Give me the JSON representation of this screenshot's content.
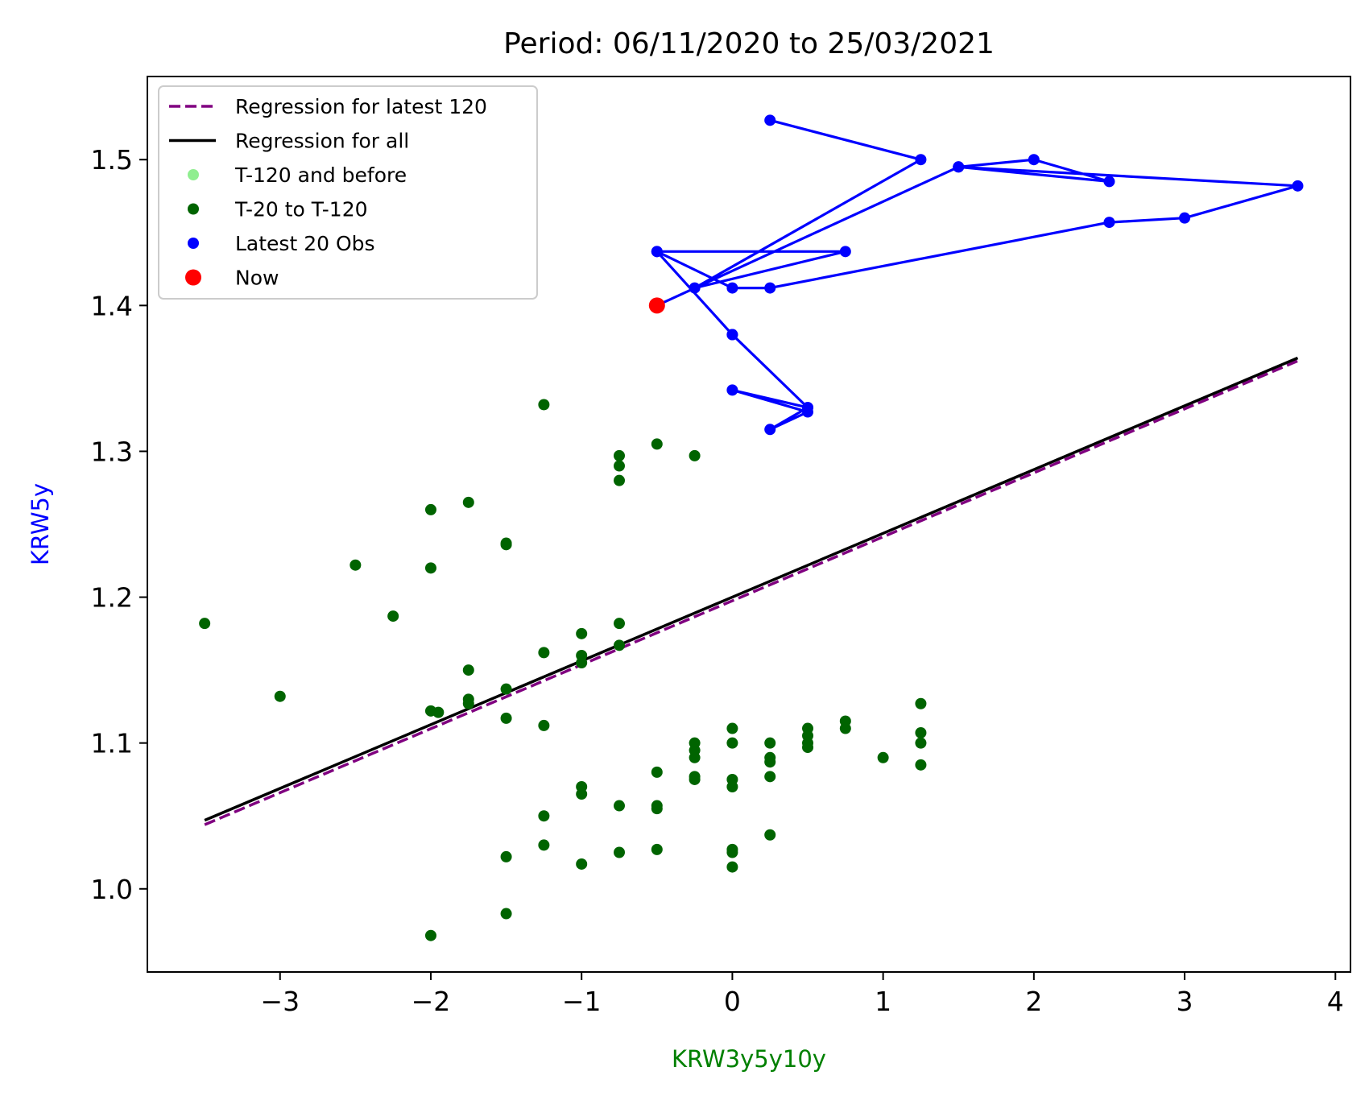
{
  "chart_data": {
    "type": "scatter",
    "title": "Period: 06/11/2020 to 25/03/2021",
    "xlabel": "KRW3y5y10y",
    "ylabel": "KRW5y",
    "xlim": [
      -3.88,
      4.1
    ],
    "ylim": [
      0.943,
      1.557
    ],
    "x_ticks": [
      {
        "value": -3,
        "label": "−3"
      },
      {
        "value": -2,
        "label": "−2"
      },
      {
        "value": -1,
        "label": "−1"
      },
      {
        "value": 0,
        "label": "0"
      },
      {
        "value": 1,
        "label": "1"
      },
      {
        "value": 2,
        "label": "2"
      },
      {
        "value": 3,
        "label": "3"
      },
      {
        "value": 4,
        "label": "4"
      }
    ],
    "y_ticks": [
      {
        "value": 1.0,
        "label": "1.0"
      },
      {
        "value": 1.1,
        "label": "1.1"
      },
      {
        "value": 1.2,
        "label": "1.2"
      },
      {
        "value": 1.3,
        "label": "1.3"
      },
      {
        "value": 1.4,
        "label": "1.4"
      },
      {
        "value": 1.5,
        "label": "1.5"
      }
    ],
    "grid": false,
    "legend_position": "top-left",
    "legend": [
      {
        "label": "Regression for latest 120",
        "kind": "dashed-line",
        "color": "#800080"
      },
      {
        "label": "Regression for all",
        "kind": "line",
        "color": "#000000"
      },
      {
        "label": "T-120 and before",
        "kind": "dot",
        "color": "#90ee90"
      },
      {
        "label": "T-20 to T-120",
        "kind": "dot",
        "color": "#006400"
      },
      {
        "label": "Latest 20 Obs",
        "kind": "dot",
        "color": "#0000ff"
      },
      {
        "label": "Now",
        "kind": "big-dot",
        "color": "#ff0000"
      }
    ],
    "colors": {
      "axis_label_x": "#008000",
      "axis_label_y": "#0000ff",
      "t20_t120": "#006400",
      "latest20": "#0000ff",
      "now": "#ff0000",
      "reg_all": "#000000",
      "reg_120": "#800080"
    },
    "regression_all": {
      "x": [
        -3.5,
        3.75
      ],
      "y": [
        1.047,
        1.364
      ]
    },
    "regression_latest_120": {
      "x": [
        -3.5,
        3.75
      ],
      "y": [
        1.044,
        1.362
      ]
    },
    "t20_to_t120": [
      [
        -3.5,
        1.182
      ],
      [
        -3.0,
        1.132
      ],
      [
        -2.5,
        1.222
      ],
      [
        -2.25,
        1.187
      ],
      [
        -2.0,
        1.26
      ],
      [
        -2.0,
        1.22
      ],
      [
        -2.0,
        1.122
      ],
      [
        -1.95,
        1.121
      ],
      [
        -2.0,
        0.968
      ],
      [
        -1.75,
        1.265
      ],
      [
        -1.75,
        1.15
      ],
      [
        -1.75,
        1.13
      ],
      [
        -1.75,
        1.127
      ],
      [
        -1.5,
        1.237
      ],
      [
        -1.5,
        1.236
      ],
      [
        -1.5,
        1.137
      ],
      [
        -1.5,
        1.117
      ],
      [
        -1.5,
        1.022
      ],
      [
        -1.5,
        0.983
      ],
      [
        -1.25,
        1.332
      ],
      [
        -1.25,
        1.162
      ],
      [
        -1.25,
        1.112
      ],
      [
        -1.25,
        1.05
      ],
      [
        -1.25,
        1.03
      ],
      [
        -1.0,
        1.175
      ],
      [
        -1.0,
        1.16
      ],
      [
        -1.0,
        1.155
      ],
      [
        -1.0,
        1.07
      ],
      [
        -1.0,
        1.065
      ],
      [
        -1.0,
        1.017
      ],
      [
        -0.75,
        1.297
      ],
      [
        -0.75,
        1.29
      ],
      [
        -0.75,
        1.28
      ],
      [
        -0.75,
        1.182
      ],
      [
        -0.75,
        1.167
      ],
      [
        -0.75,
        1.057
      ],
      [
        -0.75,
        1.025
      ],
      [
        -0.5,
        1.305
      ],
      [
        -0.5,
        1.08
      ],
      [
        -0.5,
        1.057
      ],
      [
        -0.5,
        1.055
      ],
      [
        -0.5,
        1.027
      ],
      [
        -0.25,
        1.297
      ],
      [
        -0.25,
        1.1
      ],
      [
        -0.25,
        1.095
      ],
      [
        -0.25,
        1.09
      ],
      [
        -0.25,
        1.077
      ],
      [
        -0.25,
        1.075
      ],
      [
        0.0,
        1.11
      ],
      [
        0.0,
        1.1
      ],
      [
        0.0,
        1.075
      ],
      [
        0.0,
        1.07
      ],
      [
        0.0,
        1.027
      ],
      [
        0.0,
        1.025
      ],
      [
        0.0,
        1.015
      ],
      [
        0.25,
        1.1
      ],
      [
        0.25,
        1.09
      ],
      [
        0.25,
        1.087
      ],
      [
        0.25,
        1.077
      ],
      [
        0.25,
        1.037
      ],
      [
        0.5,
        1.11
      ],
      [
        0.5,
        1.105
      ],
      [
        0.5,
        1.1
      ],
      [
        0.5,
        1.097
      ],
      [
        0.75,
        1.115
      ],
      [
        0.75,
        1.11
      ],
      [
        1.0,
        1.09
      ],
      [
        1.25,
        1.127
      ],
      [
        1.25,
        1.107
      ],
      [
        1.25,
        1.1
      ],
      [
        1.25,
        1.085
      ]
    ],
    "latest_20": [
      [
        0.25,
        1.527
      ],
      [
        1.25,
        1.5
      ],
      [
        -0.25,
        1.412
      ],
      [
        0.75,
        1.437
      ],
      [
        -0.5,
        1.437
      ],
      [
        0.0,
        1.38
      ],
      [
        0.5,
        1.33
      ],
      [
        0.0,
        1.342
      ],
      [
        0.5,
        1.327
      ],
      [
        0.25,
        1.315
      ],
      [
        0.5,
        1.33
      ],
      [
        0.0,
        1.38
      ],
      [
        -0.5,
        1.437
      ],
      [
        0.0,
        1.412
      ],
      [
        0.25,
        1.412
      ],
      [
        2.5,
        1.457
      ],
      [
        3.0,
        1.46
      ],
      [
        3.75,
        1.482
      ],
      [
        1.5,
        1.495
      ],
      [
        2.0,
        1.5
      ],
      [
        2.5,
        1.485
      ],
      [
        1.5,
        1.495
      ],
      [
        -0.5,
        1.4
      ]
    ],
    "now": [
      -0.5,
      1.4
    ]
  }
}
